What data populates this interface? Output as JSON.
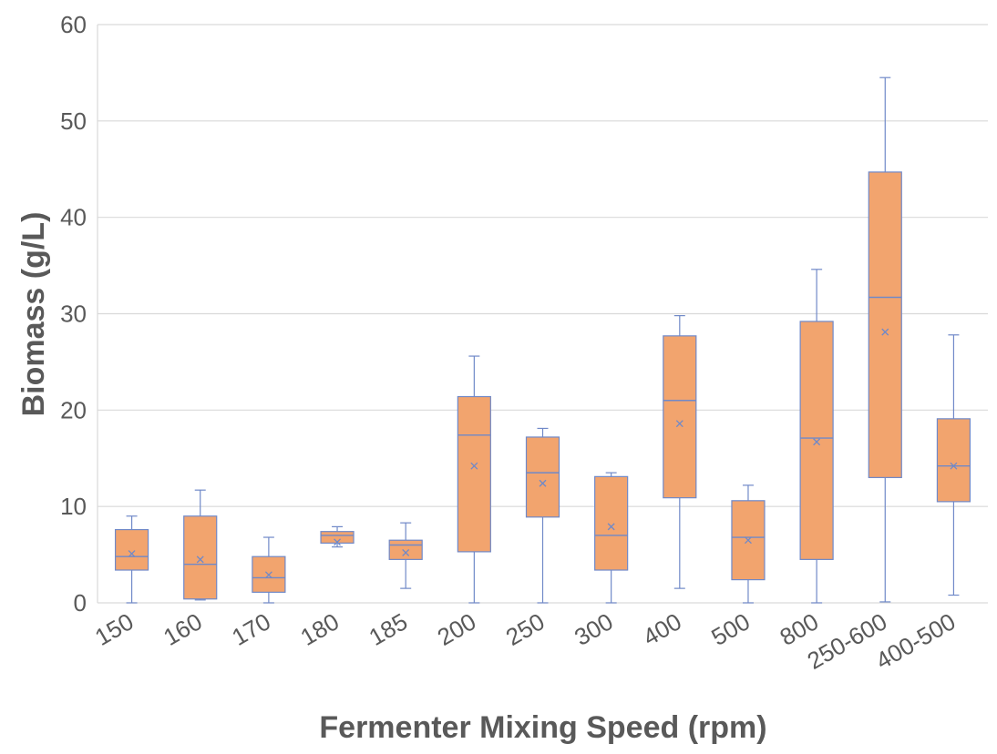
{
  "chart_data": {
    "type": "box",
    "title": "",
    "xlabel": "Fermenter Mixing Speed (rpm)",
    "ylabel": "Biomass (g/L)",
    "ylim": [
      0,
      60
    ],
    "yticks": [
      "0",
      "10",
      "20",
      "30",
      "40",
      "50",
      "60"
    ],
    "grid": true,
    "box_color": "#f2a46e",
    "line_color": "#7089c8",
    "grid_color": "#d9d9d9",
    "categories": [
      "150",
      "160",
      "170",
      "180",
      "185",
      "200",
      "250",
      "300",
      "400",
      "500",
      "800",
      "250-600",
      "400-500"
    ],
    "boxes": [
      {
        "min": 0.0,
        "q1": 3.4,
        "median": 4.8,
        "q3": 7.6,
        "max": 9.0,
        "mean": 5.1
      },
      {
        "min": 0.3,
        "q1": 0.4,
        "median": 4.0,
        "q3": 9.0,
        "max": 11.7,
        "mean": 4.5
      },
      {
        "min": 0.0,
        "q1": 1.1,
        "median": 2.6,
        "q3": 4.8,
        "max": 6.8,
        "mean": 2.9
      },
      {
        "min": 5.8,
        "q1": 6.2,
        "median": 7.0,
        "q3": 7.4,
        "max": 7.9,
        "mean": 6.3
      },
      {
        "min": 1.5,
        "q1": 4.5,
        "median": 6.0,
        "q3": 6.5,
        "max": 8.3,
        "mean": 5.2
      },
      {
        "min": 0.0,
        "q1": 5.3,
        "median": 17.4,
        "q3": 21.4,
        "max": 25.6,
        "mean": 14.2
      },
      {
        "min": 0.0,
        "q1": 8.9,
        "median": 13.5,
        "q3": 17.2,
        "max": 18.1,
        "mean": 12.4
      },
      {
        "min": 0.0,
        "q1": 3.4,
        "median": 7.0,
        "q3": 13.1,
        "max": 13.5,
        "mean": 7.9
      },
      {
        "min": 1.5,
        "q1": 10.9,
        "median": 21.0,
        "q3": 27.7,
        "max": 29.8,
        "mean": 18.6
      },
      {
        "min": 0.0,
        "q1": 2.4,
        "median": 6.8,
        "q3": 10.6,
        "max": 12.2,
        "mean": 6.5
      },
      {
        "min": 0.0,
        "q1": 4.5,
        "median": 17.1,
        "q3": 29.2,
        "max": 34.6,
        "mean": 16.7
      },
      {
        "min": 0.1,
        "q1": 13.0,
        "median": 31.7,
        "q3": 44.7,
        "max": 54.5,
        "mean": 28.1
      },
      {
        "min": 0.8,
        "q1": 10.5,
        "median": 14.2,
        "q3": 19.1,
        "max": 27.8,
        "mean": 14.2
      }
    ]
  }
}
